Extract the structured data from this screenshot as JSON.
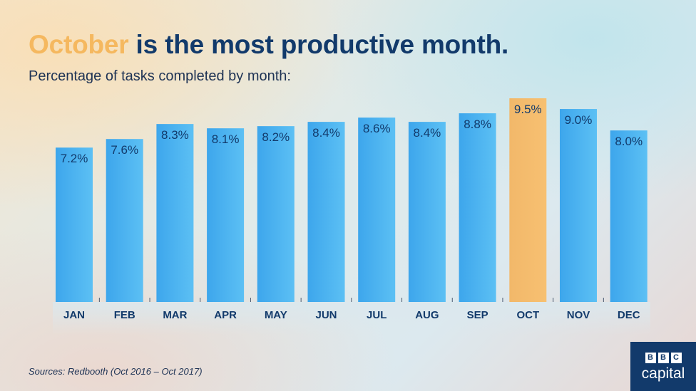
{
  "title": {
    "highlight": "October",
    "rest": " is the most productive month."
  },
  "subtitle": "Percentage of tasks completed by month:",
  "source": "Sources: Redbooth (Oct 2016 – Oct 2017)",
  "logo": {
    "letters": [
      "B",
      "B",
      "C"
    ],
    "word": "capital"
  },
  "colors": {
    "bar": "#4fb1ee",
    "highlight_bar": "#f5b869",
    "label": "#123a6b",
    "title": "#123a6b",
    "accent": "#f5b85f"
  },
  "chart_data": {
    "type": "bar",
    "categories": [
      "JAN",
      "FEB",
      "MAR",
      "APR",
      "MAY",
      "JUN",
      "JUL",
      "AUG",
      "SEP",
      "OCT",
      "NOV",
      "DEC"
    ],
    "values": [
      7.2,
      7.6,
      8.3,
      8.1,
      8.2,
      8.4,
      8.6,
      8.4,
      8.8,
      9.5,
      9.0,
      8.0
    ],
    "labels": [
      "7.2%",
      "7.6%",
      "8.3%",
      "8.1%",
      "8.2%",
      "8.4%",
      "8.6%",
      "8.4%",
      "8.8%",
      "9.5%",
      "9.0%",
      "8.0%"
    ],
    "highlight": "OCT",
    "title": "Percentage of tasks completed by month:",
    "ylim": [
      0,
      9.5
    ],
    "grid": false
  }
}
